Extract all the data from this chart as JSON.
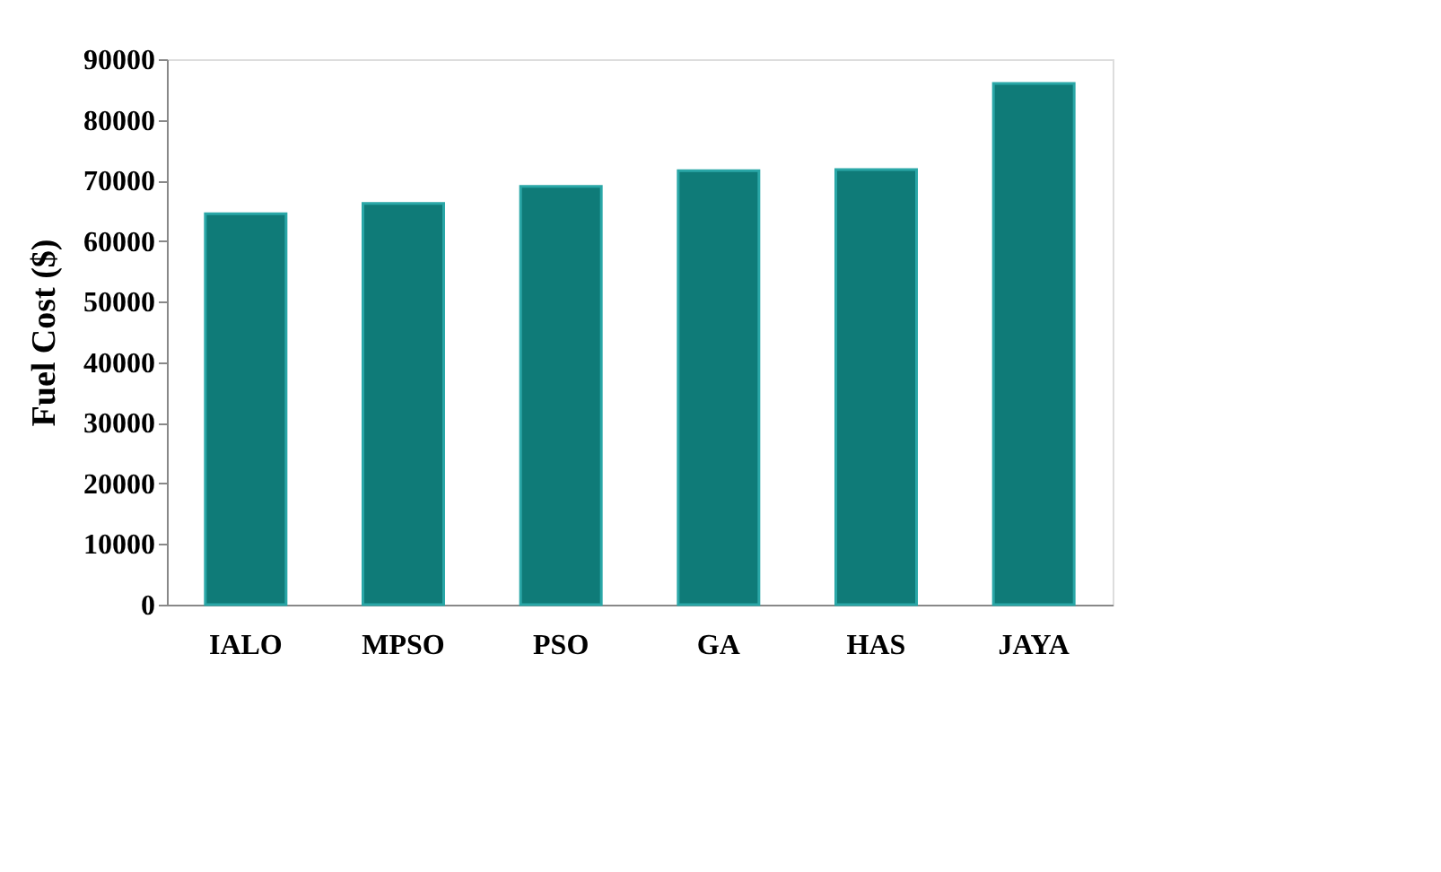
{
  "chart_data": {
    "type": "bar",
    "ylabel": "Fuel Cost ($)",
    "categories": [
      "IALO",
      "MPSO",
      "PSO",
      "GA",
      "HAS",
      "JAYA"
    ],
    "values": [
      64500,
      66200,
      69000,
      71600,
      71800,
      86000
    ],
    "color": "#0f7b78",
    "ylim": [
      0,
      90000
    ],
    "yticks": [
      0,
      10000,
      20000,
      30000,
      40000,
      50000,
      60000,
      70000,
      80000,
      90000
    ],
    "grid": false
  }
}
